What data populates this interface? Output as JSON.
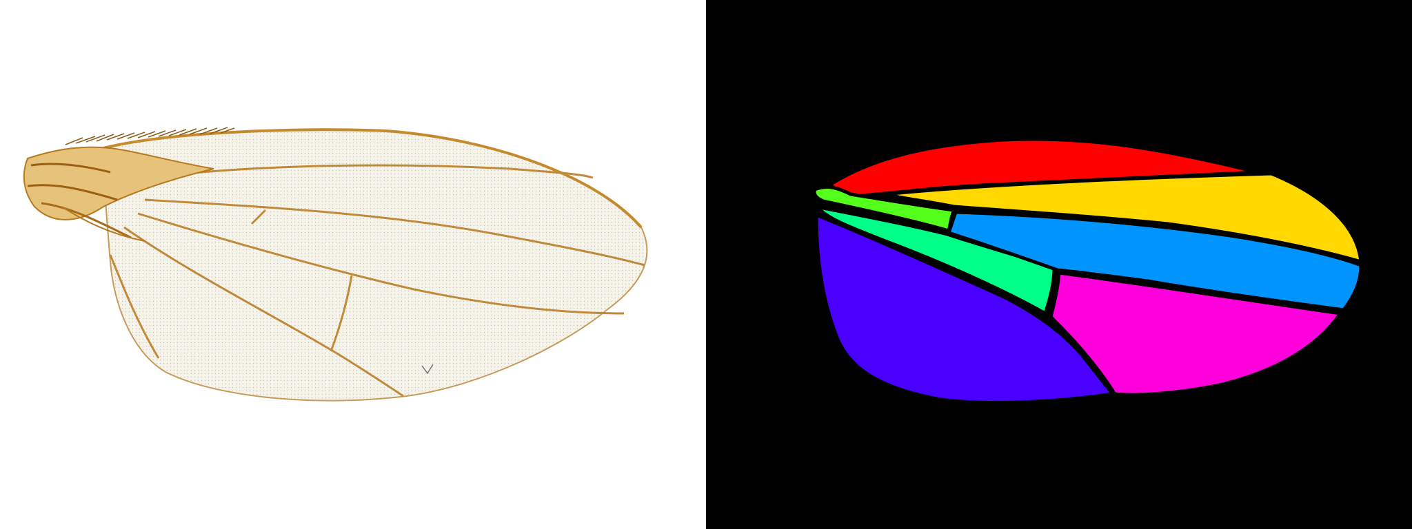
{
  "panels": [
    {
      "name": "wing-photo",
      "background": "#ffffff",
      "membrane_color": "#f4f1e4",
      "vein_color": "#c08a3a",
      "hinge_color": "#c68a2e"
    },
    {
      "name": "wing-segmentation",
      "background": "#000000",
      "outline_color": "#000000",
      "regions": [
        {
          "name": "costal-region",
          "color": "#ff0000"
        },
        {
          "name": "marginal-cell",
          "color": "#ffd800"
        },
        {
          "name": "proximal-strip",
          "color": "#55ff1c"
        },
        {
          "name": "basal-cell",
          "color": "#00ff88"
        },
        {
          "name": "submarginal-cell",
          "color": "#0094ff"
        },
        {
          "name": "posterior-distal-cell",
          "color": "#ff00dc"
        },
        {
          "name": "posterior-basal-cell",
          "color": "#4a00ff"
        }
      ]
    }
  ]
}
